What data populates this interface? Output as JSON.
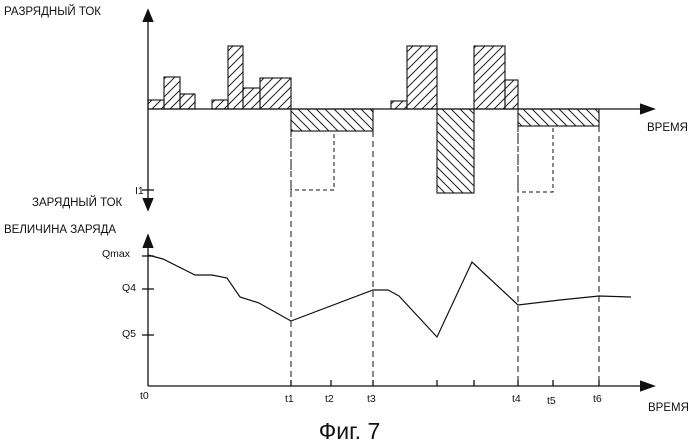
{
  "upper_chart": {
    "y_top_label": "РАЗРЯДНЫЙ ТОК",
    "y_bottom_label": "ЗАРЯДНЫЙ ТОК",
    "x_label": "ВРЕМЯ",
    "level_label": "I1"
  },
  "lower_chart": {
    "y_label": "ВЕЛИЧИНА ЗАРЯДА",
    "x_label": "ВРЕМЯ",
    "y_ticks": [
      "Qmax",
      "Q4",
      "Q5"
    ],
    "x_ticks": [
      "t0",
      "t1",
      "t2",
      "t3",
      "t4",
      "t5",
      "t6"
    ]
  },
  "caption": "Фиг. 7"
}
